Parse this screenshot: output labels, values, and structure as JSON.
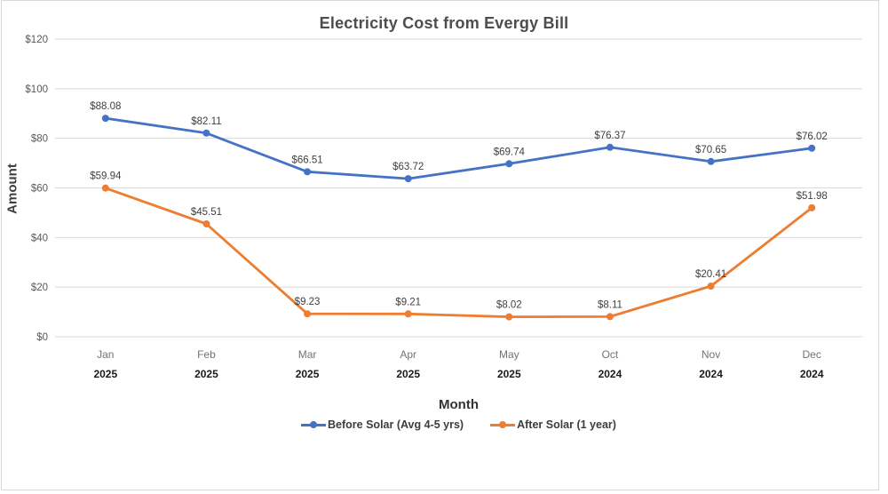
{
  "chart_data": {
    "type": "line",
    "title": "Electricity Cost from Evergy Bill",
    "xlabel": "Month",
    "ylabel": "Amount",
    "categories": [
      {
        "month": "Jan",
        "year": "2025"
      },
      {
        "month": "Feb",
        "year": "2025"
      },
      {
        "month": "Mar",
        "year": "2025"
      },
      {
        "month": "Apr",
        "year": "2025"
      },
      {
        "month": "May",
        "year": "2025"
      },
      {
        "month": "Oct",
        "year": "2024"
      },
      {
        "month": "Nov",
        "year": "2024"
      },
      {
        "month": "Dec",
        "year": "2024"
      }
    ],
    "series": [
      {
        "name": "Before Solar (Avg 4-5 yrs)",
        "color": "#4472C4",
        "values": [
          88.08,
          82.11,
          66.51,
          63.72,
          69.74,
          76.37,
          70.65,
          76.02
        ]
      },
      {
        "name": "After Solar (1 year)",
        "color": "#ED7D31",
        "values": [
          59.94,
          45.51,
          9.23,
          9.21,
          8.02,
          8.11,
          20.41,
          51.98
        ]
      }
    ],
    "ylim": [
      0,
      120
    ],
    "ytick_step": 20,
    "ytick_prefix": "$",
    "data_label_prefix": "$",
    "grid": true,
    "legend_position": "bottom",
    "colors": {
      "gridline": "#d9d9d9",
      "y_tick_label": "#595959",
      "x_month_label": "#737373",
      "x_year_label": "#1a1a1a",
      "data_label": "#404040"
    }
  }
}
